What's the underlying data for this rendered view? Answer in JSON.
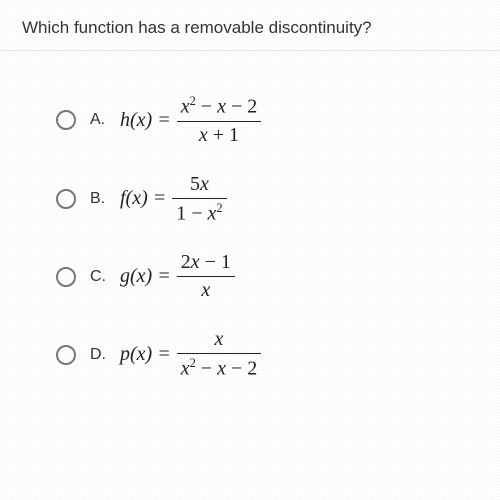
{
  "question": "Which function has a removable discontinuity?",
  "options": [
    {
      "letter": "A.",
      "func": "h(x) =",
      "num_html": "<span class='x'>x</span><sup>2</sup> − <span class='x'>x</span> − 2",
      "den_html": "<span class='x'>x</span> + 1"
    },
    {
      "letter": "B.",
      "func": "f(x) =",
      "num_html": "5<span class='x'>x</span>",
      "den_html": "1 − <span class='x'>x</span><sup>2</sup>"
    },
    {
      "letter": "C.",
      "func": "g(x) =",
      "num_html": "2<span class='x'>x</span> − 1",
      "den_html": "<span class='x'>x</span>"
    },
    {
      "letter": "D.",
      "func": "p(x) =",
      "num_html": "<span class='x'>x</span>",
      "den_html": "<span class='x'>x</span><sup>2</sup> − <span class='x'>x</span> − 2"
    }
  ],
  "styling": {
    "card_bg": "#fdfdfc",
    "page_bg": "#d8d4cf",
    "radio_border": "#777",
    "text_color": "#333",
    "eq_color": "#222",
    "question_fontsize": 17,
    "eq_fontsize": 20,
    "divider_color": "#e6e4e1"
  }
}
